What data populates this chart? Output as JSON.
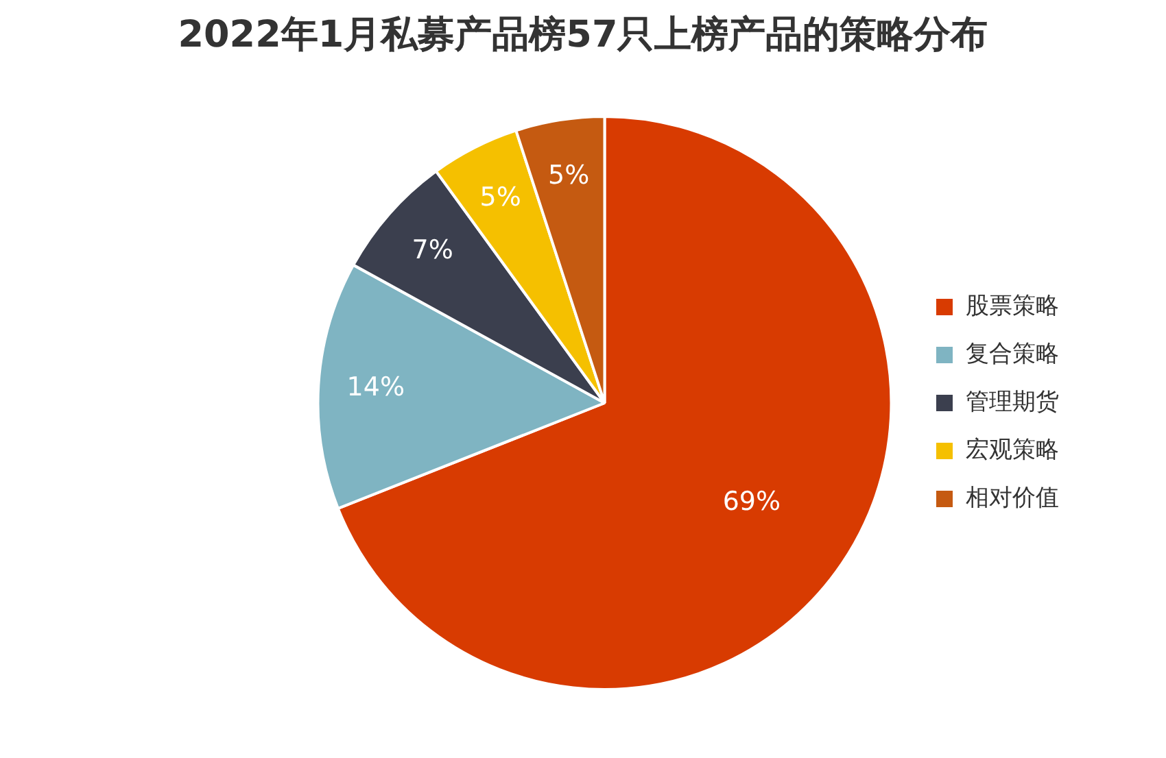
{
  "chart_data": {
    "type": "pie",
    "title": "2022年1月私募产品榜57只上榜产品的策略分布",
    "categories": [
      "股票策略",
      "复合策略",
      "管理期货",
      "宏观策略",
      "相对价值"
    ],
    "values": [
      69,
      14,
      7,
      5,
      5
    ],
    "value_labels": [
      "69%",
      "14%",
      "7%",
      "5%",
      "5%"
    ],
    "colors": [
      "#d83b01",
      "#7fb4c2",
      "#3b3f4e",
      "#f5c000",
      "#c55a11"
    ],
    "legend": "right"
  }
}
